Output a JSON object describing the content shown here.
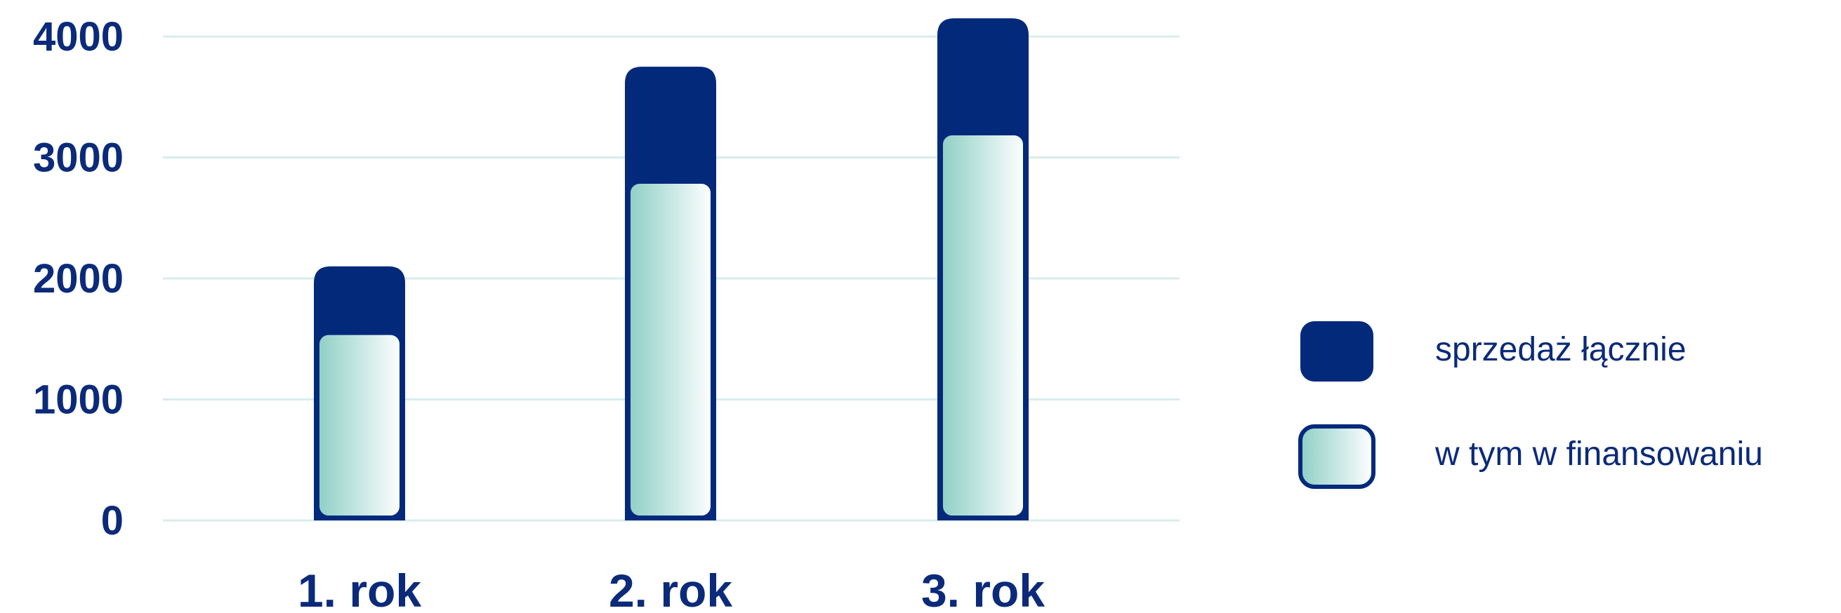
{
  "colors": {
    "navy": "#03297b",
    "navy_text": "#0b2a7a",
    "gridline": "#d9ecec",
    "financing_fill_start": "#8ecfc6",
    "financing_fill_end": "#ffffff"
  },
  "chart_data": {
    "type": "bar",
    "categories": [
      "1. rok",
      "2. rok",
      "3. rok"
    ],
    "series": [
      {
        "name": "sprzedaż łącznie",
        "values": [
          2100,
          3750,
          4150
        ]
      },
      {
        "name": "w tym w finansowaniu",
        "values": [
          1550,
          2800,
          3200
        ]
      }
    ],
    "yticks": [
      "0",
      "1000",
      "2000",
      "3000",
      "4000"
    ],
    "ylim": [
      0,
      4150
    ],
    "grid": true,
    "legend_position": "right",
    "title": "",
    "xlabel": "",
    "ylabel": ""
  }
}
